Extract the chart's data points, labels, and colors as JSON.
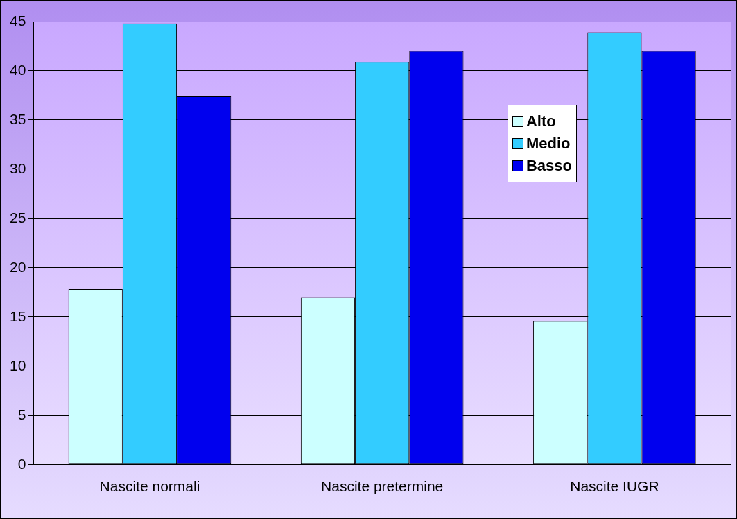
{
  "chart_data": {
    "type": "bar",
    "categories": [
      "Nascite normali",
      "Nascite pretermine",
      "Nascite IUGR"
    ],
    "series": [
      {
        "name": "Alto",
        "color": "#ccffff",
        "values": [
          17.8,
          17.0,
          14.6
        ]
      },
      {
        "name": "Medio",
        "color": "#33ccff",
        "values": [
          44.8,
          40.9,
          43.9
        ]
      },
      {
        "name": "Basso",
        "color": "#0000ee",
        "values": [
          37.4,
          42.0,
          42.0
        ]
      }
    ],
    "ylim": [
      0,
      45
    ],
    "yticks": [
      0,
      5,
      10,
      15,
      20,
      25,
      30,
      35,
      40,
      45
    ],
    "grid": "y",
    "legend": "right"
  }
}
